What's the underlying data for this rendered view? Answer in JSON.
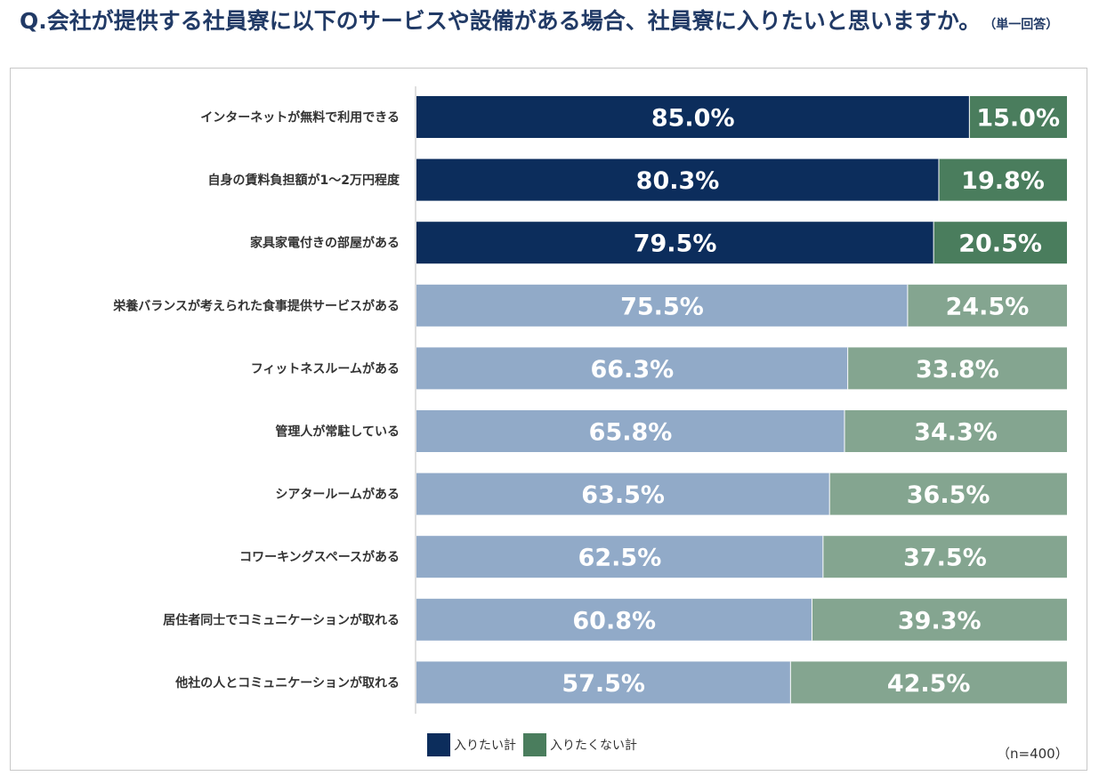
{
  "title": "Q.会社が提供する社員寮に以下のサービスや設備がある場合、社員寮に入りたいと思いますか。",
  "title_note": "（単一回答）",
  "sample_note": "（n=400）",
  "colors": {
    "want_highlight": "#0c2d5c",
    "notwant_highlight": "#4a7d5d",
    "want": "#91aac8",
    "notwant": "#84a590"
  },
  "chart_data": {
    "type": "bar",
    "stacked": true,
    "orientation": "horizontal",
    "categories": [
      "インターネットが無料で利用できる",
      "自身の賃料負担額が1〜2万円程度",
      "家具家電付きの部屋がある",
      "栄養バランスが考えられた食事提供サービスがある",
      "フィットネスルームがある",
      "管理人が常駐している",
      "シアタールームがある",
      "コワーキングスペースがある",
      "居住者同士でコミュニケーションが取れる",
      "他社の人とコミュニケーションが取れる"
    ],
    "series": [
      {
        "name": "入りたい計",
        "values": [
          85.0,
          80.3,
          79.5,
          75.5,
          66.3,
          65.8,
          63.5,
          62.5,
          60.8,
          57.5
        ]
      },
      {
        "name": "入りたくない計",
        "values": [
          15.0,
          19.8,
          20.5,
          24.5,
          33.8,
          34.3,
          36.5,
          37.5,
          39.3,
          42.5
        ]
      }
    ],
    "value_labels": {
      "want": [
        "85.0%",
        "80.3%",
        "79.5%",
        "75.5%",
        "66.3%",
        "65.8%",
        "63.5%",
        "62.5%",
        "60.8%",
        "57.5%"
      ],
      "notwant": [
        "15.0%",
        "19.8%",
        "20.5%",
        "24.5%",
        "33.8%",
        "34.3%",
        "36.5%",
        "37.5%",
        "39.3%",
        "42.5%"
      ]
    },
    "highlighted_rows": 3,
    "xlim": [
      0,
      100
    ],
    "legend": "bottom"
  }
}
